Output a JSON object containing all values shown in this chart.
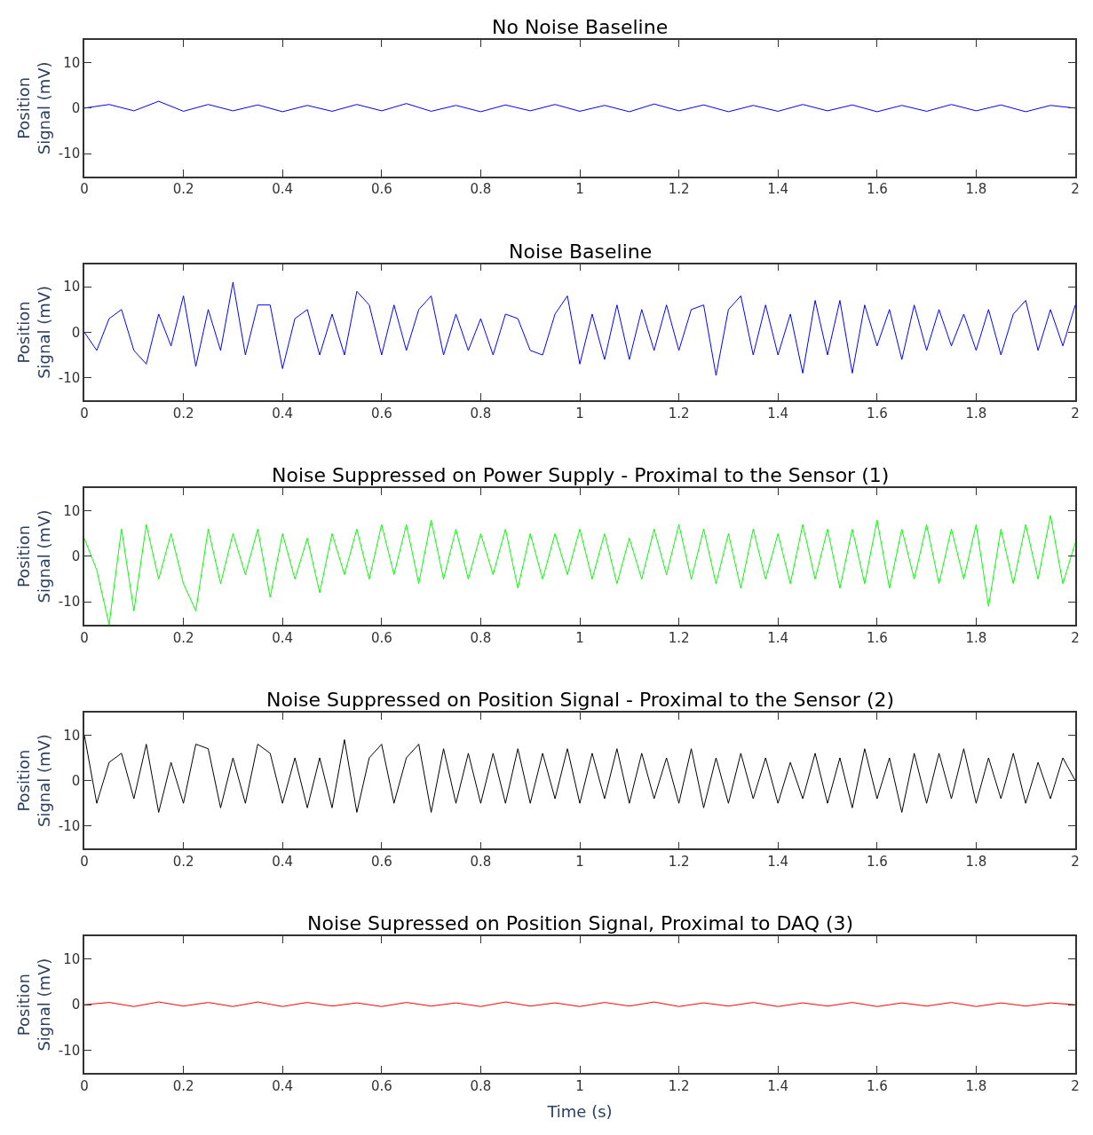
{
  "chart_data": [
    {
      "type": "line",
      "title": "No Noise Baseline",
      "ylabel": "Position\nSignal (mV)",
      "xlim": [
        0,
        2
      ],
      "xticks": [
        0,
        0.2,
        0.4,
        0.6,
        0.8,
        1,
        1.2,
        1.4,
        1.6,
        1.8,
        2
      ],
      "ylim": [
        -15,
        15
      ],
      "yticks": [
        -10,
        0,
        10
      ],
      "grid": false,
      "series": [
        {
          "color": "#0000ff",
          "x": [
            0,
            0.05,
            0.1,
            0.15,
            0.2,
            0.25,
            0.3,
            0.35,
            0.4,
            0.45,
            0.5,
            0.55,
            0.6,
            0.65,
            0.7,
            0.75,
            0.8,
            0.85,
            0.9,
            0.95,
            1,
            1.05,
            1.1,
            1.15,
            1.2,
            1.25,
            1.3,
            1.35,
            1.4,
            1.45,
            1.5,
            1.55,
            1.6,
            1.65,
            1.7,
            1.75,
            1.8,
            1.85,
            1.9,
            1.95,
            2
          ],
          "values": [
            0,
            0.8,
            -0.6,
            1.5,
            -0.7,
            0.8,
            -0.6,
            0.7,
            -0.8,
            0.6,
            -0.7,
            0.8,
            -0.6,
            1.0,
            -0.7,
            0.6,
            -0.8,
            0.7,
            -0.6,
            0.8,
            -0.7,
            0.6,
            -0.8,
            0.9,
            -0.6,
            0.7,
            -0.8,
            0.6,
            -0.7,
            0.8,
            -0.6,
            0.7,
            -0.8,
            0.6,
            -0.7,
            0.8,
            -0.6,
            0.7,
            -0.8,
            0.6,
            0
          ]
        }
      ]
    },
    {
      "type": "line",
      "title": "Noise Baseline",
      "ylabel": "Position\nSignal (mV)",
      "xlim": [
        0,
        2
      ],
      "xticks": [
        0,
        0.2,
        0.4,
        0.6,
        0.8,
        1,
        1.2,
        1.4,
        1.6,
        1.8,
        2
      ],
      "ylim": [
        -15,
        15
      ],
      "yticks": [
        -10,
        0,
        10
      ],
      "grid": false,
      "series": [
        {
          "color": "#0000ff",
          "x": [
            0,
            0.025,
            0.05,
            0.075,
            0.1,
            0.125,
            0.15,
            0.175,
            0.2,
            0.225,
            0.25,
            0.275,
            0.3,
            0.325,
            0.35,
            0.375,
            0.4,
            0.425,
            0.45,
            0.475,
            0.5,
            0.525,
            0.55,
            0.575,
            0.6,
            0.625,
            0.65,
            0.675,
            0.7,
            0.725,
            0.75,
            0.775,
            0.8,
            0.825,
            0.85,
            0.875,
            0.9,
            0.925,
            0.95,
            0.975,
            1,
            1.025,
            1.05,
            1.075,
            1.1,
            1.125,
            1.15,
            1.175,
            1.2,
            1.225,
            1.25,
            1.275,
            1.3,
            1.325,
            1.35,
            1.375,
            1.4,
            1.425,
            1.45,
            1.475,
            1.5,
            1.525,
            1.55,
            1.575,
            1.6,
            1.625,
            1.65,
            1.675,
            1.7,
            1.725,
            1.75,
            1.775,
            1.8,
            1.825,
            1.85,
            1.875,
            1.9,
            1.925,
            1.95,
            1.975,
            2
          ],
          "values": [
            0,
            -4,
            3,
            5,
            -4,
            -7,
            4,
            -3,
            8,
            -7.5,
            5,
            -4,
            11,
            -5,
            6,
            6,
            -8,
            3,
            5,
            -5,
            4,
            -5,
            9,
            6,
            -5,
            6,
            -4,
            5,
            8,
            -5,
            4,
            -4,
            3,
            -5,
            4,
            3,
            -4,
            -5,
            4,
            8,
            -7,
            4,
            -6,
            6,
            -6,
            5,
            -4,
            6,
            -4,
            5,
            6,
            -9.5,
            5,
            8,
            -5,
            6,
            -5,
            4,
            -9,
            7,
            -5,
            7,
            -9,
            6,
            -3,
            5,
            -6,
            6,
            -4,
            5,
            -3,
            4,
            -4,
            5,
            -5,
            4,
            7,
            -4,
            5,
            -3,
            6
          ]
        }
      ]
    },
    {
      "type": "line",
      "title": "Noise Suppressed on Power Supply - Proximal to the Sensor (1)",
      "ylabel": "Position\nSignal (mV)",
      "xlim": [
        0,
        2
      ],
      "xticks": [
        0,
        0.2,
        0.4,
        0.6,
        0.8,
        1,
        1.2,
        1.4,
        1.6,
        1.8,
        2
      ],
      "ylim": [
        -15,
        15
      ],
      "yticks": [
        -10,
        0,
        10
      ],
      "grid": false,
      "series": [
        {
          "color": "#00ff00",
          "x": [
            0,
            0.025,
            0.05,
            0.075,
            0.1,
            0.125,
            0.15,
            0.175,
            0.2,
            0.225,
            0.25,
            0.275,
            0.3,
            0.325,
            0.35,
            0.375,
            0.4,
            0.425,
            0.45,
            0.475,
            0.5,
            0.525,
            0.55,
            0.575,
            0.6,
            0.625,
            0.65,
            0.675,
            0.7,
            0.725,
            0.75,
            0.775,
            0.8,
            0.825,
            0.85,
            0.875,
            0.9,
            0.925,
            0.95,
            0.975,
            1,
            1.025,
            1.05,
            1.075,
            1.1,
            1.125,
            1.15,
            1.175,
            1.2,
            1.225,
            1.25,
            1.275,
            1.3,
            1.325,
            1.35,
            1.375,
            1.4,
            1.425,
            1.45,
            1.475,
            1.5,
            1.525,
            1.55,
            1.575,
            1.6,
            1.625,
            1.65,
            1.675,
            1.7,
            1.725,
            1.75,
            1.775,
            1.8,
            1.825,
            1.85,
            1.875,
            1.9,
            1.925,
            1.95,
            1.975,
            2
          ],
          "values": [
            4,
            -3,
            -15,
            6,
            -12,
            7,
            -5,
            5,
            -6,
            -12,
            6,
            -6,
            5,
            -4,
            6,
            -9,
            5,
            -5,
            4,
            -8,
            5,
            -4,
            6,
            -5,
            7,
            -4,
            7,
            -6,
            8,
            -5,
            6,
            -5,
            5,
            -4,
            6,
            -7,
            5,
            -5,
            5,
            -4,
            6,
            -5,
            5,
            -6,
            4,
            -5,
            6,
            -4,
            7,
            -5,
            6,
            -6,
            5,
            -7,
            6,
            -5,
            5,
            -6,
            7,
            -5,
            6,
            -7,
            6,
            -6,
            8,
            -7,
            6,
            -5,
            7,
            -6,
            6,
            -5,
            7,
            -11,
            6,
            -6,
            7,
            -5,
            9,
            -6,
            3
          ]
        }
      ]
    },
    {
      "type": "line",
      "title": "Noise Suppressed on Position Signal - Proximal to the Sensor (2)",
      "ylabel": "Position\nSignal (mV)",
      "xlim": [
        0,
        2
      ],
      "xticks": [
        0,
        0.2,
        0.4,
        0.6,
        0.8,
        1,
        1.2,
        1.4,
        1.6,
        1.8,
        2
      ],
      "ylim": [
        -15,
        15
      ],
      "yticks": [
        -10,
        0,
        10
      ],
      "grid": false,
      "series": [
        {
          "color": "#000000",
          "x": [
            0,
            0.025,
            0.05,
            0.075,
            0.1,
            0.125,
            0.15,
            0.175,
            0.2,
            0.225,
            0.25,
            0.275,
            0.3,
            0.325,
            0.35,
            0.375,
            0.4,
            0.425,
            0.45,
            0.475,
            0.5,
            0.525,
            0.55,
            0.575,
            0.6,
            0.625,
            0.65,
            0.675,
            0.7,
            0.725,
            0.75,
            0.775,
            0.8,
            0.825,
            0.85,
            0.875,
            0.9,
            0.925,
            0.95,
            0.975,
            1,
            1.025,
            1.05,
            1.075,
            1.1,
            1.125,
            1.15,
            1.175,
            1.2,
            1.225,
            1.25,
            1.275,
            1.3,
            1.325,
            1.35,
            1.375,
            1.4,
            1.425,
            1.45,
            1.475,
            1.5,
            1.525,
            1.55,
            1.575,
            1.6,
            1.625,
            1.65,
            1.675,
            1.7,
            1.725,
            1.75,
            1.775,
            1.8,
            1.825,
            1.85,
            1.875,
            1.9,
            1.925,
            1.95,
            1.975,
            2
          ],
          "values": [
            10,
            -5,
            4,
            6,
            -4,
            8,
            -7,
            4,
            -5,
            8,
            7,
            -6,
            5,
            -5,
            8,
            6,
            -5,
            5,
            -6,
            5,
            -6,
            9,
            -7,
            5,
            8,
            -5,
            5,
            8,
            -7,
            7,
            -5,
            6,
            -5,
            6,
            -5,
            7,
            -5,
            6,
            -4,
            7,
            -5,
            6,
            -4,
            7,
            -5,
            6,
            -4,
            5,
            -5,
            7,
            -6,
            5,
            -5,
            6,
            -4,
            5,
            -5,
            4,
            -4,
            6,
            -5,
            5,
            -6,
            7,
            -4,
            5,
            -7,
            6,
            -5,
            6,
            -4,
            7,
            -5,
            5,
            -4,
            6,
            -5,
            4,
            -4,
            5,
            0
          ]
        }
      ]
    },
    {
      "type": "line",
      "title": "Noise Supressed on Position Signal, Proximal to DAQ (3)",
      "xlabel": "Time (s)",
      "ylabel": "Position\nSignal (mV)",
      "xlim": [
        0,
        2
      ],
      "xticks": [
        0,
        0.2,
        0.4,
        0.6,
        0.8,
        1,
        1.2,
        1.4,
        1.6,
        1.8,
        2
      ],
      "ylim": [
        -15,
        15
      ],
      "yticks": [
        -10,
        0,
        10
      ],
      "grid": false,
      "series": [
        {
          "color": "#ff0000",
          "x": [
            0,
            0.05,
            0.1,
            0.15,
            0.2,
            0.25,
            0.3,
            0.35,
            0.4,
            0.45,
            0.5,
            0.55,
            0.6,
            0.65,
            0.7,
            0.75,
            0.8,
            0.85,
            0.9,
            0.95,
            1,
            1.05,
            1.1,
            1.15,
            1.2,
            1.25,
            1.3,
            1.35,
            1.4,
            1.45,
            1.5,
            1.55,
            1.6,
            1.65,
            1.7,
            1.75,
            1.8,
            1.85,
            1.9,
            1.95,
            2
          ],
          "values": [
            0,
            0.5,
            -0.4,
            0.6,
            -0.3,
            0.5,
            -0.4,
            0.6,
            -0.4,
            0.5,
            -0.3,
            0.4,
            -0.4,
            0.5,
            -0.3,
            0.4,
            -0.4,
            0.6,
            -0.3,
            0.4,
            -0.4,
            0.5,
            -0.3,
            0.6,
            -0.4,
            0.4,
            -0.3,
            0.5,
            -0.4,
            0.4,
            -0.3,
            0.5,
            -0.4,
            0.4,
            -0.3,
            0.5,
            -0.4,
            0.4,
            -0.3,
            0.4,
            0
          ]
        }
      ]
    }
  ]
}
